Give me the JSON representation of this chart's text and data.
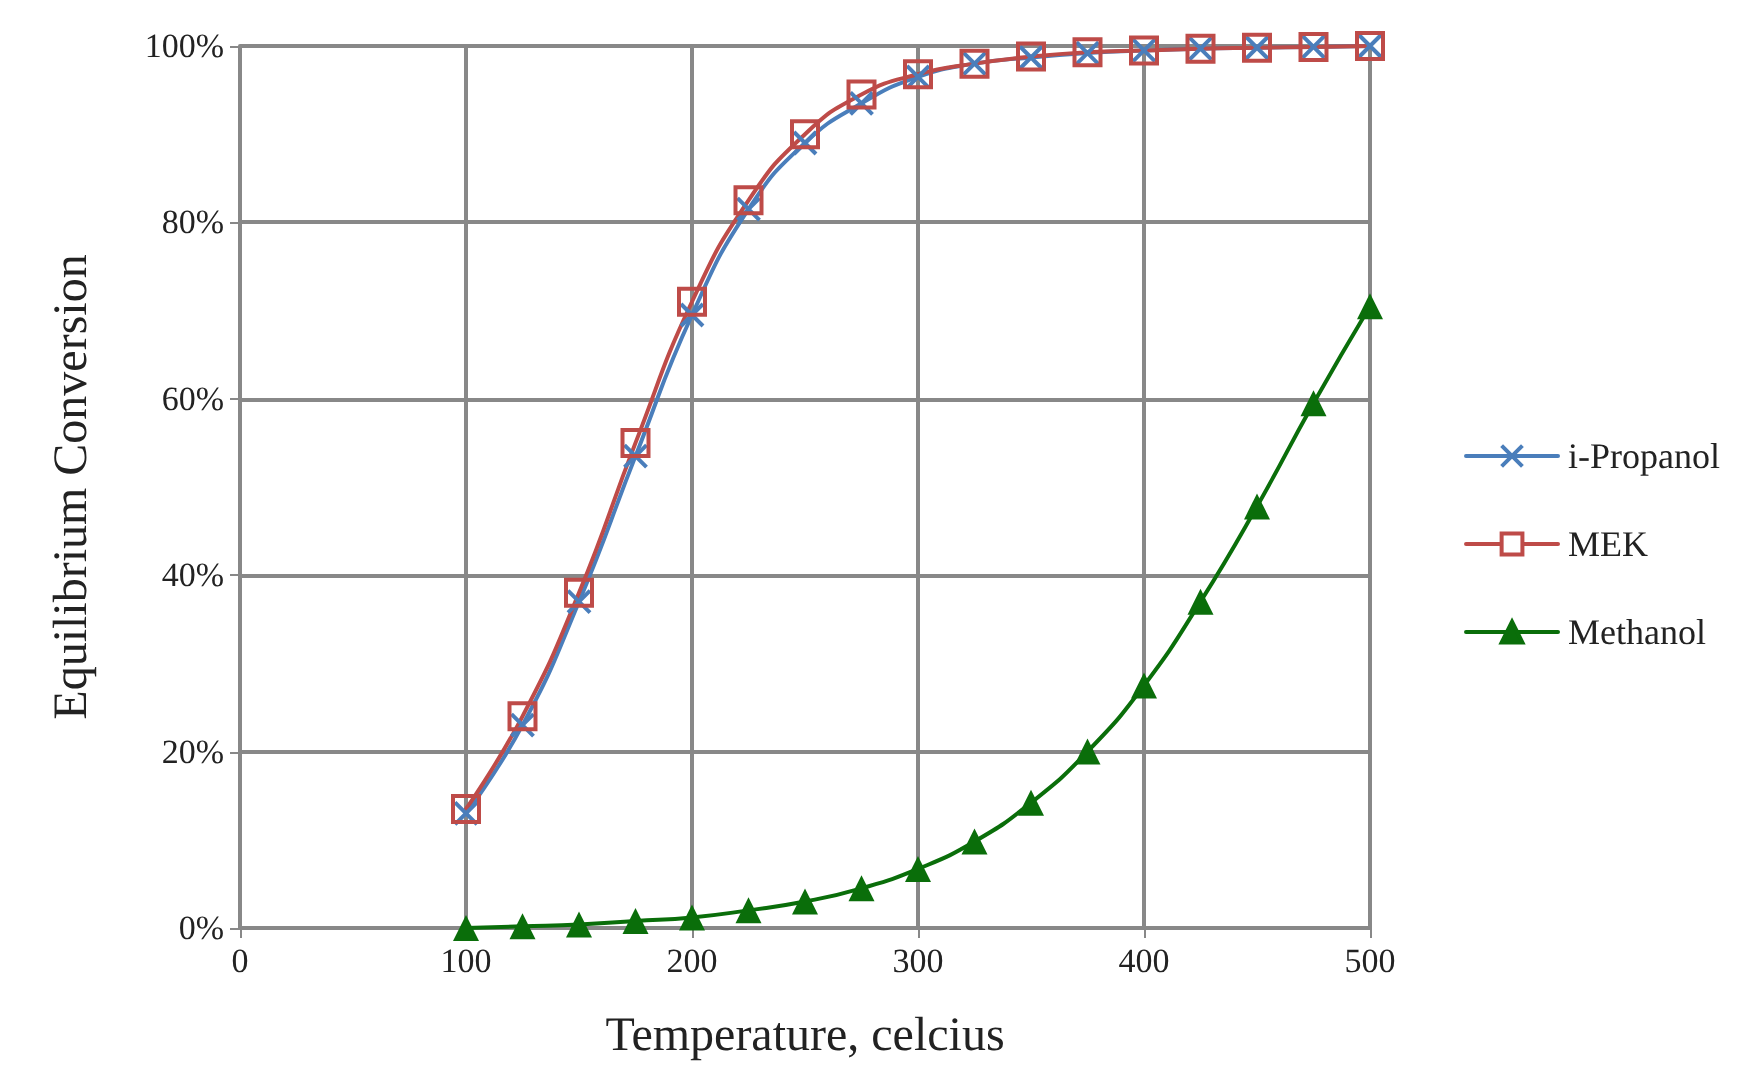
{
  "chart_data": {
    "type": "line",
    "xlabel": "Temperature, celcius",
    "ylabel": "Equilibrium Conversion",
    "x": [
      100,
      125,
      150,
      175,
      200,
      225,
      250,
      275,
      300,
      325,
      350,
      375,
      400,
      425,
      450,
      475,
      500
    ],
    "series": [
      {
        "name": "i-Propanol",
        "color": "#4a7ebb",
        "marker": "cross",
        "values": [
          13,
          23,
          37,
          53.5,
          69.5,
          81.5,
          89,
          93.5,
          96.5,
          98,
          98.7,
          99.2,
          99.5,
          99.7,
          99.8,
          99.9,
          100
        ]
      },
      {
        "name": "MEK",
        "color": "#be4b48",
        "marker": "square",
        "values": [
          13.5,
          24,
          38,
          55,
          71,
          82.5,
          90,
          94.5,
          96.8,
          98,
          98.8,
          99.3,
          99.5,
          99.7,
          99.8,
          99.9,
          100
        ]
      },
      {
        "name": "Methanol",
        "color": "#0a6e0a",
        "marker": "triangle",
        "values": [
          0,
          0.2,
          0.4,
          0.8,
          1.2,
          2,
          3,
          4.5,
          6.7,
          9.8,
          14.2,
          20,
          27.5,
          37,
          47.8,
          59.5,
          70.5
        ]
      }
    ],
    "xlim": [
      0,
      500
    ],
    "xticks": [
      0,
      100,
      200,
      300,
      400,
      500
    ],
    "ylim": [
      0,
      100
    ],
    "yticks": [
      {
        "value": 0,
        "label": "0%"
      },
      {
        "value": 20,
        "label": "20%"
      },
      {
        "value": 40,
        "label": "40%"
      },
      {
        "value": 60,
        "label": "60%"
      },
      {
        "value": 80,
        "label": "80%"
      },
      {
        "value": 100,
        "label": "100%"
      }
    ],
    "grid": true,
    "legend": "right",
    "line_style": "solid"
  }
}
